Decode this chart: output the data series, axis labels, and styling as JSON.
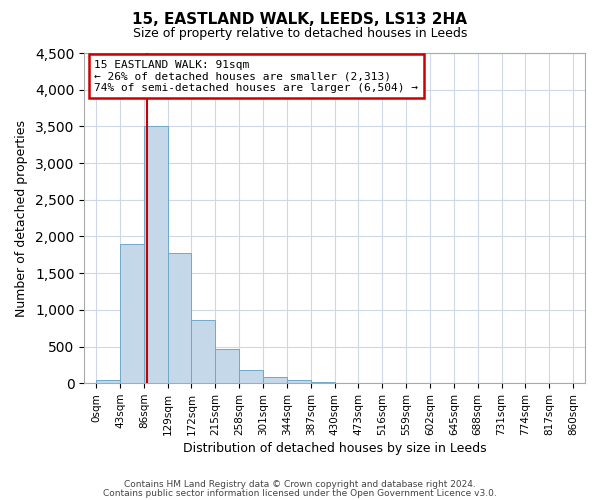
{
  "title": "15, EASTLAND WALK, LEEDS, LS13 2HA",
  "subtitle": "Size of property relative to detached houses in Leeds",
  "xlabel": "Distribution of detached houses by size in Leeds",
  "ylabel": "Number of detached properties",
  "bar_values": [
    50,
    1900,
    3500,
    1780,
    860,
    460,
    185,
    90,
    40,
    20,
    0,
    0,
    0,
    0,
    0,
    0,
    0,
    0,
    0,
    0
  ],
  "bin_labels": [
    "0sqm",
    "43sqm",
    "86sqm",
    "129sqm",
    "172sqm",
    "215sqm",
    "258sqm",
    "301sqm",
    "344sqm",
    "387sqm",
    "430sqm",
    "473sqm",
    "516sqm",
    "559sqm",
    "602sqm",
    "645sqm",
    "688sqm",
    "731sqm",
    "774sqm",
    "817sqm",
    "860sqm"
  ],
  "bar_color": "#c5d8ea",
  "bar_edge_color": "#6fa8c8",
  "property_line_x": 91,
  "bin_width": 43,
  "ylim": [
    0,
    4500
  ],
  "yticks": [
    0,
    500,
    1000,
    1500,
    2000,
    2500,
    3000,
    3500,
    4000,
    4500
  ],
  "annotation_title": "15 EASTLAND WALK: 91sqm",
  "annotation_line1": "← 26% of detached houses are smaller (2,313)",
  "annotation_line2": "74% of semi-detached houses are larger (6,504) →",
  "annotation_box_color": "#ffffff",
  "annotation_box_edge": "#cc0000",
  "vline_color": "#cc0000",
  "footer1": "Contains HM Land Registry data © Crown copyright and database right 2024.",
  "footer2": "Contains public sector information licensed under the Open Government Licence v3.0.",
  "background_color": "#ffffff",
  "grid_color": "#d0d8e8"
}
